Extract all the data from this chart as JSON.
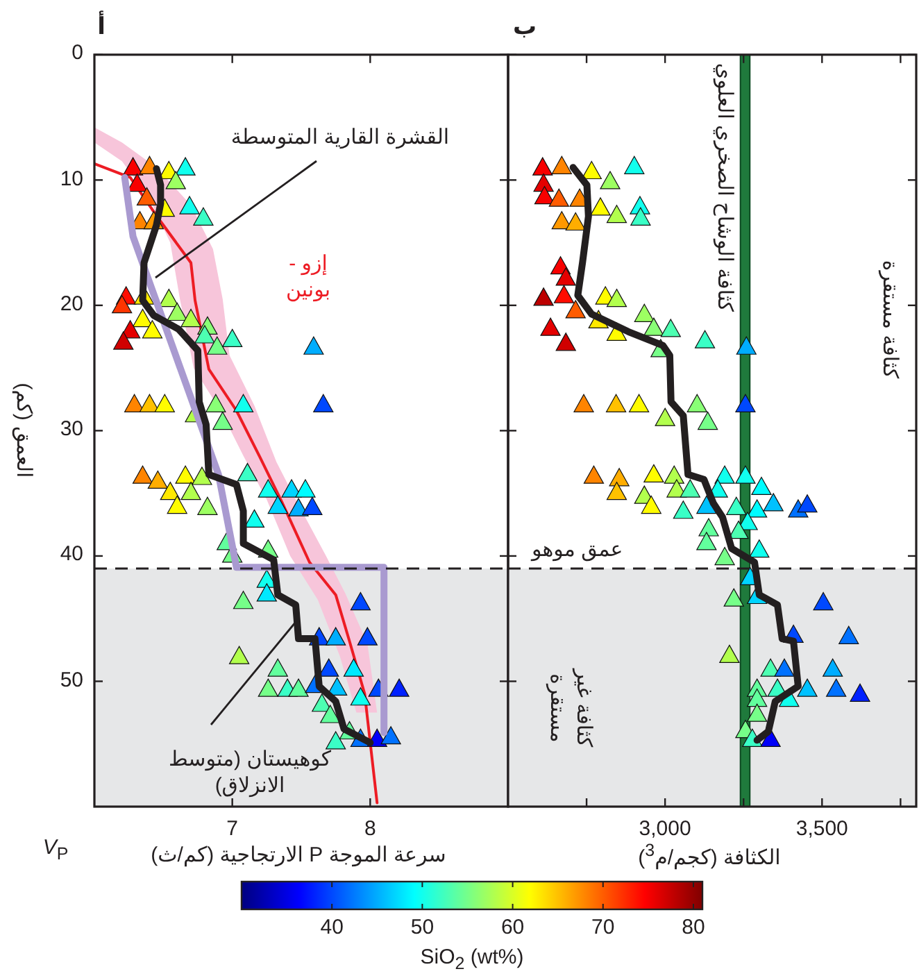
{
  "chart_data": [
    {
      "type": "scatter",
      "title": "أ",
      "xlabel": "سرعة الموجة P الارتجاجية (كم/ث)",
      "ylabel": "العمق (كم)",
      "xlim": [
        6.0,
        9.0
      ],
      "xticks": [
        7,
        8
      ],
      "ylim": [
        60,
        0
      ],
      "yticks": [
        0,
        10,
        20,
        30,
        40,
        50
      ],
      "bands": [
        {
          "axis": "y",
          "from": 41,
          "to": 60,
          "color": "#e6e7e8"
        }
      ],
      "ref_lines": [
        {
          "axis": "y",
          "value": 41,
          "line_style": "dashed",
          "color": "#231f20"
        }
      ],
      "annotations": [
        "*V*$_{P}$"
      ],
      "series": [
        {
          "type": "area",
          "color": "#f7c5da",
          "x": [
            6.0,
            6.2,
            6.4,
            6.55,
            6.62,
            6.72,
            6.92,
            7.08,
            7.25,
            7.42,
            7.62,
            7.78,
            7.9,
            8.05,
            7.98,
            7.82,
            7.68,
            7.46,
            7.32,
            7.16,
            6.98,
            6.93,
            6.86,
            6.7,
            6.45,
            6.2,
            6.0
          ],
          "values": [
            7.0,
            8.5,
            11.5,
            15.0,
            19.5,
            25.0,
            28.5,
            32.0,
            35.5,
            40.0,
            43.5,
            48.0,
            52.5,
            52.5,
            47.0,
            43.0,
            40.0,
            35.5,
            32.5,
            28.0,
            24.0,
            19.5,
            15.5,
            12.0,
            9.0,
            7.0,
            5.8
          ]
        },
        {
          "type": "line",
          "name": "إزو - بونين",
          "color": "#ed1c24",
          "marker": "none",
          "line_style": "solid",
          "x": [
            6.0,
            6.26,
            6.46,
            6.7,
            6.73,
            6.83,
            7.03,
            7.2,
            7.36,
            7.56,
            7.75,
            7.85,
            7.96,
            8.05
          ],
          "values": [
            8.7,
            9.8,
            13.0,
            16.6,
            19.6,
            25.1,
            28.4,
            32.1,
            35.7,
            40.5,
            43.1,
            46.8,
            51.0,
            59.7
          ]
        },
        {
          "type": "scatter",
          "marker": "triangle",
          "x": [
            6.28,
            6.4,
            6.54,
            6.66,
            6.59,
            6.31,
            6.38,
            6.51,
            6.69,
            6.79,
            6.33,
            6.43,
            6.23,
            6.2,
            6.36,
            6.54,
            6.35,
            6.42,
            6.26,
            6.21,
            6.6,
            6.7,
            6.82,
            6.8,
            6.89,
            7.0,
            7.59,
            6.29,
            6.4,
            6.51,
            6.73,
            6.88,
            6.93,
            7.08,
            7.66,
            6.35,
            6.46,
            6.66,
            6.78,
            6.55,
            6.7,
            6.6,
            6.82,
            7.11,
            7.26,
            7.43,
            7.53,
            7.33,
            7.48,
            7.58,
            7.16,
            6.96,
            7.0,
            7.26,
            7.25,
            7.25,
            7.08,
            7.93,
            7.63,
            7.75,
            7.98,
            7.05,
            7.33,
            7.88,
            7.7,
            7.26,
            7.4,
            7.48,
            7.6,
            7.76,
            8.06,
            8.21,
            7.93,
            7.65,
            7.71,
            7.75,
            7.93,
            8.05,
            8.15,
            7.85
          ],
          "values": [
            9.1,
            9.0,
            9.4,
            9.1,
            10.2,
            10.4,
            11.5,
            12.4,
            12.2,
            13.1,
            13.4,
            13.4,
            19.4,
            20.1,
            19.4,
            19.6,
            21.2,
            22.1,
            22.1,
            23.0,
            20.7,
            21.2,
            21.8,
            22.5,
            23.4,
            22.8,
            23.4,
            28.0,
            28.0,
            28.0,
            28.8,
            28.0,
            29.4,
            28.0,
            28.0,
            33.7,
            34.1,
            33.7,
            33.8,
            35.0,
            35.0,
            36.1,
            36.2,
            33.5,
            34.8,
            34.8,
            34.8,
            36.1,
            36.3,
            36.2,
            37.2,
            39.0,
            40.0,
            39.6,
            42.0,
            43.1,
            43.7,
            43.8,
            46.6,
            46.6,
            46.6,
            48.1,
            49.1,
            49.1,
            49.1,
            50.7,
            50.7,
            50.7,
            50.4,
            50.6,
            50.7,
            50.7,
            51.4,
            51.9,
            52.8,
            54.9,
            54.7,
            54.7,
            54.5,
            54.1
          ],
          "colors": [
            "#f80000",
            "#ff8400",
            "#fffc00",
            "#11ffee",
            "#9dff62",
            "#f80000",
            "#ff5c00",
            "#fffc00",
            "#11ffee",
            "#3affc6",
            "#ff8400",
            "#ff9800",
            "#ff0c00",
            "#ff3500",
            "#ffe900",
            "#b2ff4d",
            "#fffc00",
            "#fffc00",
            "#e40000",
            "#d00000",
            "#9dff62",
            "#b2ff4d",
            "#89ff76",
            "#4dffb2",
            "#76ff89",
            "#3affc6",
            "#00adff",
            "#ff8400",
            "#ffc100",
            "#fffc00",
            "#b2ff4d",
            "#89ff76",
            "#76ff89",
            "#11ffee",
            "#0048ff",
            "#ff8400",
            "#ffad00",
            "#fffc00",
            "#b2ff4d",
            "#ffe900",
            "#b2ff4d",
            "#fffc00",
            "#9dff62",
            "#3affc6",
            "#11ffee",
            "#00d4ff",
            "#00fcff",
            "#00d4ff",
            "#00adff",
            "#0048ff",
            "#11ffee",
            "#62ff9d",
            "#76ff89",
            "#76ff89",
            "#11ffee",
            "#00e9ff",
            "#76ff89",
            "#0048ff",
            "#0048ff",
            "#00adff",
            "#0048ff",
            "#b2ff4d",
            "#62ff9d",
            "#00e9ff",
            "#0048ff",
            "#76ff89",
            "#3affc6",
            "#62ff9d",
            "#0071ff",
            "#00c1ff",
            "#0048ff",
            "#0021ff",
            "#11ffee",
            "#4dffb2",
            "#62ff9d",
            "#3affc6",
            "#0071ff",
            "#0000f8",
            "#0071ff",
            "#62ff9d"
          ]
        },
        {
          "type": "line",
          "name": "القشرة القارية المتوسطة",
          "color": "#a99ad0",
          "marker": "none",
          "line_style": "solid",
          "x": [
            6.22,
            6.28,
            6.9,
            7.03,
            8.1,
            8.1
          ],
          "values": [
            9.8,
            14.5,
            33.5,
            40.9,
            40.9,
            54.1
          ]
        },
        {
          "type": "line",
          "name": "كوهيستان (متوسط الانزلاق)",
          "color": "#231f20",
          "marker": "none",
          "line_style": "solid",
          "x": [
            6.45,
            6.48,
            6.48,
            6.45,
            6.36,
            6.35,
            6.43,
            6.61,
            6.75,
            6.76,
            6.81,
            6.83,
            7.03,
            7.08,
            7.08,
            7.3,
            7.33,
            7.46,
            7.48,
            7.6,
            7.63,
            7.75,
            7.81,
            8.0
          ],
          "values": [
            9.1,
            10.4,
            11.9,
            13.6,
            16.6,
            19.6,
            20.8,
            21.9,
            23.6,
            27.7,
            29.5,
            33.5,
            34.3,
            36.4,
            39.0,
            40.3,
            43.1,
            43.9,
            46.6,
            46.6,
            50.4,
            51.6,
            53.8,
            54.9
          ]
        }
      ]
    },
    {
      "type": "scatter",
      "title": "ب",
      "xlabel": "الكثافة (كجم/م$^{3}$)",
      "clabel": "SiO$_{2}$ (wt%)",
      "xlim": [
        2500,
        3800
      ],
      "xticks": [
        {
          "value": 2750,
          "label": null
        },
        {
          "value": 3000,
          "label": "3,000"
        },
        {
          "value": 3250,
          "label": null
        },
        {
          "value": 3500,
          "label": "3,500"
        },
        {
          "value": 3750,
          "label": null
        }
      ],
      "ylim": [
        60,
        0
      ],
      "yticks": [
        0,
        10,
        20,
        30,
        40,
        50
      ],
      "tick_labels": "x",
      "clim": [
        30,
        81
      ],
      "cticks": [
        40,
        50,
        60,
        70,
        80
      ],
      "bands": [
        {
          "axis": "y",
          "from": 41,
          "to": 60,
          "color": "#e6e7e8"
        },
        {
          "axis": "x",
          "from": 3240,
          "to": 3270,
          "color": "#1f7a3c",
          "label": "كثافة الوشاح الصخري العلوي"
        }
      ],
      "ref_lines": [
        {
          "axis": "y",
          "value": 41,
          "line_style": "dashed",
          "color": "#231f20",
          "label": "عمق موهو"
        }
      ],
      "annotations": [
        "كثافة مستقرة",
        "كثافة غير مستقرة"
      ],
      "series": [
        {
          "type": "scatter",
          "marker": "triangle",
          "x": [
            2610,
            2671,
            2766,
            2825,
            2902,
            2613,
            2616,
            2662,
            2728,
            2794,
            2846,
            2920,
            2922,
            2671,
            2715,
            2667,
            2684,
            2613,
            2678,
            2810,
            2846,
            2715,
            2788,
            2846,
            2635,
            2684,
            2934,
            2964,
            3018,
            2986,
            3127,
            3259,
            2741,
            2844,
            2917,
            3000,
            3102,
            3136,
            3256,
            2773,
            2854,
            2964,
            3029,
            2846,
            2934,
            3037,
            2956,
            3058,
            3080,
            3190,
            3256,
            3307,
            3168,
            3132,
            3227,
            3293,
            3345,
            3424,
            3453,
            3263,
            3139,
            3132,
            3234,
            3190,
            3300,
            3271,
            3219,
            3293,
            3504,
            3409,
            3585,
            3205,
            3336,
            3380,
            3534,
            3293,
            3358,
            3453,
            3545,
            3621,
            3395,
            3293,
            3293,
            3256,
            3278,
            3336
          ],
          "values": [
            9.1,
            9.0,
            9.4,
            10.2,
            9.0,
            10.4,
            11.4,
            11.6,
            11.6,
            12.3,
            12.9,
            12.2,
            13.1,
            13.4,
            13.5,
            17.0,
            17.9,
            19.5,
            19.3,
            19.4,
            19.6,
            20.5,
            21.3,
            22.3,
            21.9,
            23.1,
            20.8,
            21.9,
            22.0,
            23.6,
            22.9,
            23.4,
            28.0,
            28.0,
            28.0,
            29.1,
            28.0,
            29.4,
            28.0,
            33.7,
            33.9,
            33.6,
            33.7,
            35.0,
            35.3,
            34.8,
            36.1,
            36.5,
            34.8,
            33.7,
            33.7,
            34.6,
            34.8,
            36.1,
            36.2,
            36.4,
            35.9,
            36.4,
            36.0,
            37.4,
            37.9,
            39.0,
            38.1,
            40.2,
            39.6,
            41.8,
            43.5,
            43.3,
            43.8,
            46.4,
            46.5,
            48.0,
            49.1,
            49.1,
            49.1,
            50.7,
            50.7,
            50.7,
            50.7,
            51.1,
            51.5,
            51.5,
            52.7,
            54.0,
            54.7,
            54.7
          ],
          "colors": [
            "#f80000",
            "#ff8400",
            "#fffc00",
            "#9dff62",
            "#11ffee",
            "#e40000",
            "#f80000",
            "#ff5c00",
            "#ff8400",
            "#fffc00",
            "#b2ff4d",
            "#11ffee",
            "#3affc6",
            "#ff9800",
            "#ffad00",
            "#f80000",
            "#e40000",
            "#bc0000",
            "#ff0c00",
            "#fffc00",
            "#b2ff4d",
            "#ff5c00",
            "#ffe900",
            "#fffc00",
            "#e40000",
            "#d00000",
            "#9dff62",
            "#89ff76",
            "#4dffb2",
            "#76ff89",
            "#3affc6",
            "#00adff",
            "#ff8400",
            "#ffc100",
            "#fffc00",
            "#b2ff4d",
            "#89ff76",
            "#76ff89",
            "#0048ff",
            "#ff8400",
            "#ffad00",
            "#fffc00",
            "#b2ff4d",
            "#ffc100",
            "#b2ff4d",
            "#b2ff4d",
            "#fffc00",
            "#3affc6",
            "#4dffb2",
            "#11ffee",
            "#11ffee",
            "#00fcff",
            "#11ffee",
            "#00c1ff",
            "#3affc6",
            "#00fcff",
            "#00c1ff",
            "#0071ff",
            "#0048ff",
            "#11ffee",
            "#62ff9d",
            "#62ff9d",
            "#4dffb2",
            "#76ff89",
            "#11ffee",
            "#00d4ff",
            "#76ff89",
            "#00d4ff",
            "#0048ff",
            "#0048ff",
            "#0071ff",
            "#b2ff4d",
            "#4dffb2",
            "#0071ff",
            "#00adff",
            "#62ff9d",
            "#3affc6",
            "#00c1ff",
            "#0071ff",
            "#0021ff",
            "#11ffee",
            "#62ff9d",
            "#76ff89",
            "#76ff89",
            "#3affc6",
            "#0000f8"
          ]
        },
        {
          "type": "line",
          "color": "#231f20",
          "marker": "none",
          "line_style": "solid",
          "x": [
            2707,
            2751,
            2756,
            2737,
            2722,
            2766,
            2883,
            2993,
            3015,
            3019,
            3058,
            3073,
            3124,
            3154,
            3183,
            3212,
            3285,
            3300,
            3358,
            3373,
            3409,
            3424,
            3351,
            3329,
            3293
          ],
          "values": [
            9.0,
            10.4,
            12.9,
            16.6,
            19.2,
            20.7,
            22.1,
            23.2,
            24.0,
            27.7,
            28.8,
            33.5,
            33.9,
            35.8,
            36.9,
            39.4,
            40.5,
            43.1,
            43.9,
            46.6,
            46.8,
            50.4,
            51.6,
            54.0,
            54.7
          ]
        }
      ]
    }
  ]
}
